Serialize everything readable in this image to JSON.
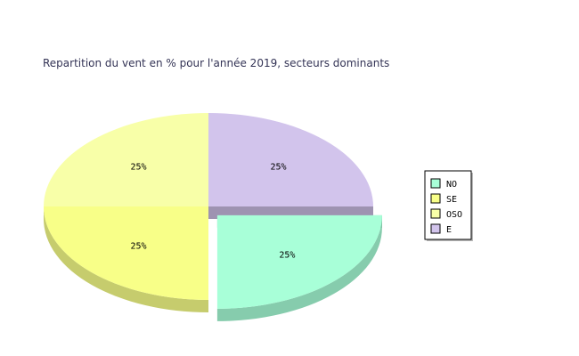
{
  "chart_data": {
    "type": "pie",
    "title": "Repartition du vent en % pour l'année 2019, secteurs dominants",
    "categories": [
      "NO",
      "SE",
      "OSO",
      "E"
    ],
    "values": [
      25,
      25,
      25,
      25
    ],
    "data_labels": [
      "25%",
      "25%",
      "25%",
      "25%"
    ],
    "colors": {
      "NO": "#a8ffd8",
      "SE": "#f8ff88",
      "OSO": "#f8ffa8",
      "E": "#d2c4ec"
    },
    "exploded": [
      "NO"
    ],
    "three_d": true,
    "legend_position": "right"
  }
}
